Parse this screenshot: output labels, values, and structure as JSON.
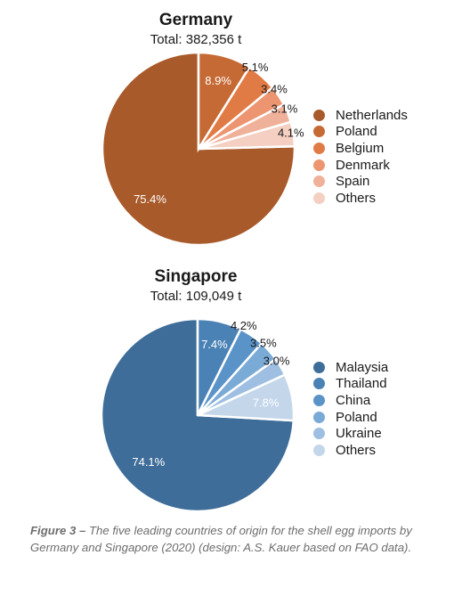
{
  "chart_data": [
    {
      "type": "pie",
      "title": "Germany",
      "subtitle": "Total: 382,356 t",
      "labels": [
        "Netherlands",
        "Poland",
        "Belgium",
        "Denmark",
        "Spain",
        "Others"
      ],
      "values": [
        75.4,
        8.9,
        5.1,
        3.4,
        3.1,
        4.1
      ],
      "value_labels": [
        "75.4%",
        "8.9%",
        "5.1%",
        "3.4%",
        "3.1%",
        "4.1%"
      ],
      "colors": [
        "#a95a2b",
        "#c66a35",
        "#e17b45",
        "#ec9570",
        "#f0b19a",
        "#f4cfc2"
      ],
      "legend": "right"
    },
    {
      "type": "pie",
      "title": "Singapore",
      "subtitle": "Total: 109,049 t",
      "labels": [
        "Malaysia",
        "Thailand",
        "China",
        "Poland",
        "Ukraine",
        "Others"
      ],
      "values": [
        74.1,
        7.4,
        4.2,
        3.5,
        3.0,
        7.8
      ],
      "value_labels": [
        "74.1%",
        "7.4%",
        "4.2%",
        "3.5%",
        "3.0%",
        "7.8%"
      ],
      "colors": [
        "#3e6d99",
        "#4b82b6",
        "#5a93c8",
        "#7aaad6",
        "#9ebfe2",
        "#c3d6ea"
      ],
      "legend": "right"
    }
  ],
  "caption": {
    "figure_label": "Figure 3 –",
    "text": " The five leading countries of origin for the shell egg imports by Germany and Singapore (2020) (design: A.S. Kauer based on FAO data)."
  }
}
